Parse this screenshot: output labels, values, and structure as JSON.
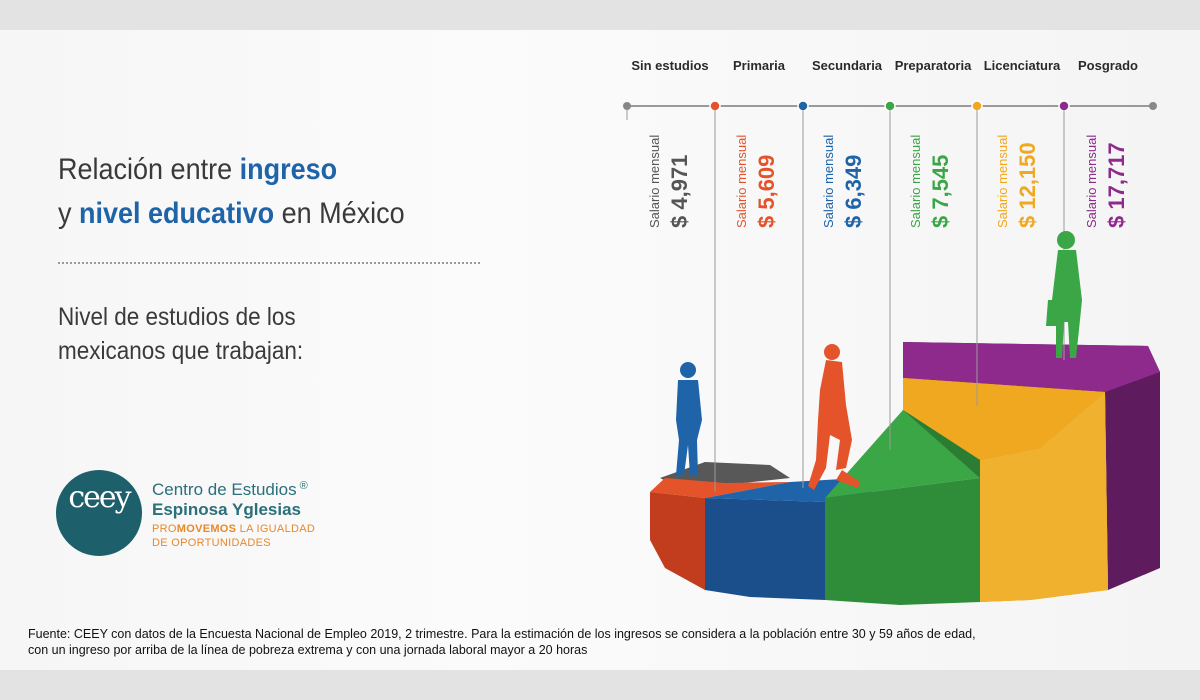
{
  "title": {
    "line1_prefix": "Relación entre ",
    "line1_bold": "ingreso",
    "line2_prefix": "y ",
    "line2_bold": "nivel educativo",
    "line2_suffix": " en México"
  },
  "subtitle": {
    "line1": "Nivel de estudios de los",
    "line2": "mexicanos que trabajan:"
  },
  "salary_label": "Salario mensual",
  "levels": [
    {
      "name": "Sin estudios",
      "salary": "$ 4,971",
      "color": "#555555"
    },
    {
      "name": "Primaria",
      "salary": "$ 5,609",
      "color": "#e5532b"
    },
    {
      "name": "Secundaria",
      "salary": "$ 6,349",
      "color": "#1f63a8"
    },
    {
      "name": "Preparatoria",
      "salary": "$ 7,545",
      "color": "#3aa645"
    },
    {
      "name": "Licenciatura",
      "salary": "$ 12,150",
      "color": "#f0a820"
    },
    {
      "name": "Posgrado",
      "salary": "$ 17,717",
      "color": "#8e2a8c"
    }
  ],
  "logo": {
    "mark": "ceey",
    "name_line1": "Centro de Estudios",
    "registered": "®",
    "name_line2": "Espinosa Yglesias",
    "tag_pre": "PRO",
    "tag_bold": "MOVEMOS",
    "tag_post": " LA IGUALDAD",
    "tag_line2": "DE OPORTUNIDADES"
  },
  "source": {
    "line1": "Fuente: CEEY con datos de la Encuesta Nacional de Empleo 2019, 2 trimestre. Para la estimación de los ingresos se considera a la población entre 30 y 59 años de edad,",
    "line2": "con un ingreso por arriba de la línea de pobreza extrema y con una jornada laboral mayor a 20 horas"
  }
}
